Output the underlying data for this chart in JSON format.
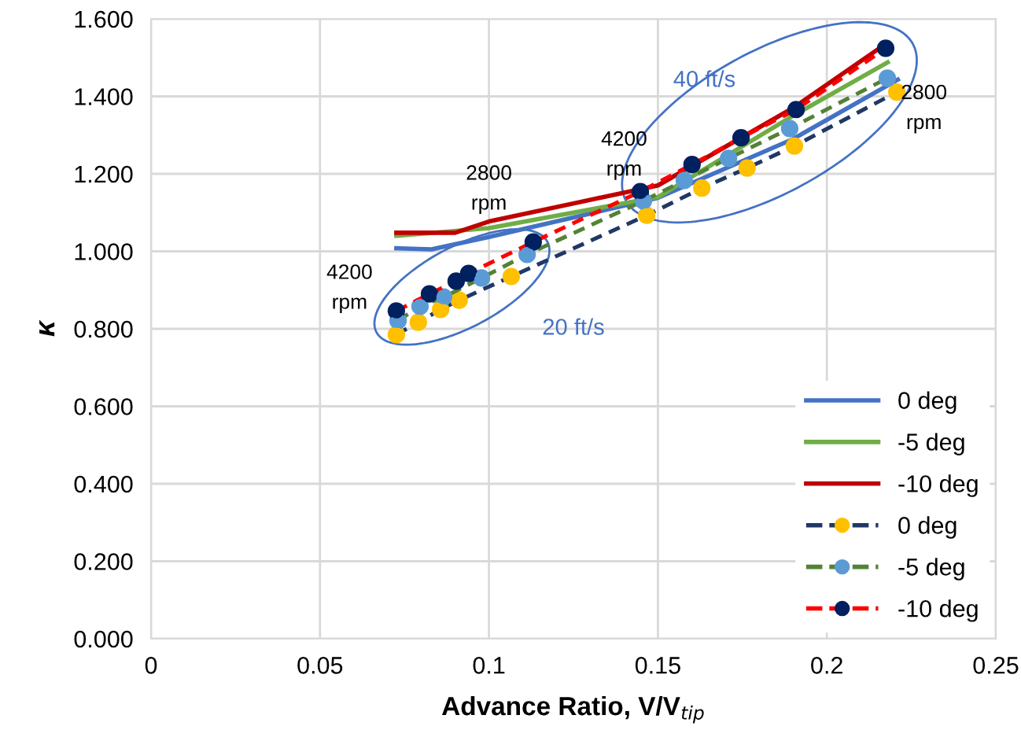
{
  "chart_data": {
    "type": "line",
    "xlabel": "Advance Ratio, V/V$_{tip}$",
    "ylabel": "κ",
    "xlim": [
      0,
      0.25
    ],
    "xticks": [
      0,
      0.05,
      0.1,
      0.15,
      0.2,
      0.25
    ],
    "ylim": [
      0,
      1.6
    ],
    "yticks": [
      {
        "value": 0,
        "label": "0.000"
      },
      {
        "value": 0.2,
        "label": "0.200"
      },
      {
        "value": 0.4,
        "label": "0.400"
      },
      {
        "value": 0.6,
        "label": "0.600"
      },
      {
        "value": 0.8,
        "label": "0.800"
      },
      {
        "value": 1.0,
        "label": "1.000"
      },
      {
        "value": 1.2,
        "label": "1.200"
      },
      {
        "value": 1.4,
        "label": "1.400"
      },
      {
        "value": 1.6,
        "label": "1.600"
      }
    ],
    "grid": true,
    "legend": "bottom right",
    "series": [
      {
        "name": "0 deg",
        "color": "#4472c4",
        "line_style": "solid",
        "marker": "none",
        "x": [
          0.0726,
          0.083,
          0.1,
          0.15,
          0.19,
          0.221
        ],
        "values": [
          1.008,
          1.005,
          1.037,
          1.138,
          1.29,
          1.443
        ]
      },
      {
        "name": "-5 deg",
        "color": "#70ad47",
        "line_style": "solid",
        "marker": "none",
        "x": [
          0.0726,
          0.1,
          0.15,
          0.19,
          0.218
        ],
        "values": [
          1.04,
          1.06,
          1.14,
          1.35,
          1.488
        ]
      },
      {
        "name": "-10 deg",
        "color": "#c00000",
        "line_style": "solid",
        "marker": "none",
        "x": [
          0.0726,
          0.09,
          0.1,
          0.15,
          0.19,
          0.217
        ],
        "values": [
          1.048,
          1.048,
          1.077,
          1.17,
          1.37,
          1.533
        ]
      },
      {
        "name": "0 deg",
        "color": "#203864",
        "colors": [
          "#ffc000",
          "#ffc000",
          "#ffc000",
          "#ffc000",
          "#ffc000",
          "#ffc000",
          "#ffc000",
          "#ffc000",
          "#ffc000",
          "#ffc000"
        ],
        "line_style": "dashed",
        "marker": "circle",
        "x": [
          0.0726,
          0.0791,
          0.0857,
          0.0912,
          0.1066,
          0.1467,
          0.163,
          0.1764,
          0.1904,
          0.2207
        ],
        "values": [
          0.785,
          0.817,
          0.85,
          0.874,
          0.935,
          1.093,
          1.163,
          1.215,
          1.272,
          1.411
        ]
      },
      {
        "name": "-5 deg",
        "color": "#548235",
        "colors": [
          "#5b9bd5",
          "#5b9bd5",
          "#5b9bd5",
          "#5b9bd5",
          "#5b9bd5",
          "#5b9bd5",
          "#5b9bd5",
          "#5b9bd5",
          "#5b9bd5",
          "#5b9bd5"
        ],
        "line_style": "dashed",
        "marker": "circle",
        "x": [
          0.0731,
          0.0796,
          0.0866,
          0.0978,
          0.1113,
          0.1457,
          0.1578,
          0.1709,
          0.189,
          0.2179
        ],
        "values": [
          0.821,
          0.858,
          0.882,
          0.931,
          0.992,
          1.13,
          1.183,
          1.24,
          1.317,
          1.447
        ]
      },
      {
        "name": "-10 deg",
        "color": "#ff0000",
        "colors": [
          "#002060",
          "#002060",
          "#002060",
          "#002060",
          "#002060",
          "#002060",
          "#002060",
          "#002060",
          "#002060",
          "#002060"
        ],
        "line_style": "dashed",
        "marker": "circle",
        "x": [
          0.0726,
          0.0824,
          0.0903,
          0.094,
          0.1131,
          0.1448,
          0.1601,
          0.1746,
          0.1909,
          0.2174
        ],
        "values": [
          0.846,
          0.89,
          0.923,
          0.943,
          1.024,
          1.154,
          1.224,
          1.293,
          1.366,
          1.524
        ]
      }
    ],
    "annotations": [
      "4200\nrpm",
      "2800\nrpm",
      "4200\nrpm",
      "2800\nrpm",
      "20 ft/s",
      "40 ft/s"
    ]
  }
}
